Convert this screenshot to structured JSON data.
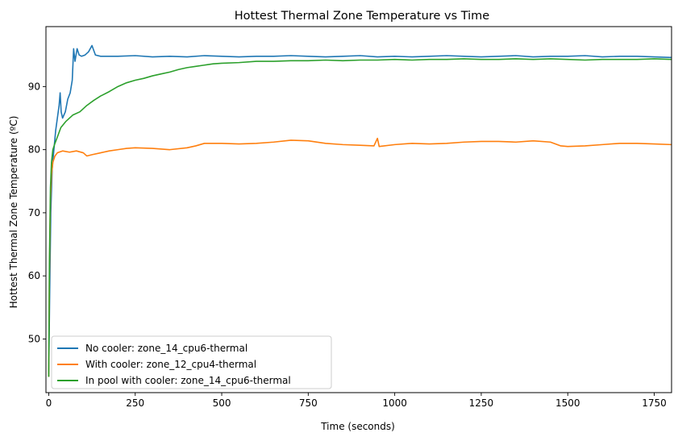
{
  "chart_data": {
    "type": "line",
    "title": "Hottest Thermal Zone Temperature vs Time",
    "xlabel": "Time (seconds)",
    "ylabel": "Hottest Thermal Zone Temperature (ºC)",
    "xlim": [
      -8,
      1800
    ],
    "ylim": [
      41.5,
      99.5
    ],
    "xticks": [
      0,
      250,
      500,
      750,
      1000,
      1250,
      1500,
      1750
    ],
    "yticks": [
      50,
      60,
      70,
      80,
      90
    ],
    "legend_position": "lower-left",
    "grid": false,
    "series": [
      {
        "name": "No cooler: zone_14_cpu6-thermal",
        "color": "#1f77b4",
        "points": [
          [
            0,
            44
          ],
          [
            3,
            58
          ],
          [
            6,
            70
          ],
          [
            10,
            77
          ],
          [
            15,
            80
          ],
          [
            20,
            83
          ],
          [
            25,
            85
          ],
          [
            30,
            87
          ],
          [
            33,
            89
          ],
          [
            36,
            86
          ],
          [
            40,
            85
          ],
          [
            48,
            86
          ],
          [
            55,
            88
          ],
          [
            62,
            89
          ],
          [
            68,
            91
          ],
          [
            72,
            96
          ],
          [
            76,
            94
          ],
          [
            82,
            96
          ],
          [
            88,
            95
          ],
          [
            95,
            94.8
          ],
          [
            105,
            95
          ],
          [
            115,
            95.5
          ],
          [
            125,
            96.5
          ],
          [
            135,
            95
          ],
          [
            150,
            94.8
          ],
          [
            200,
            94.8
          ],
          [
            250,
            94.9
          ],
          [
            300,
            94.7
          ],
          [
            350,
            94.8
          ],
          [
            400,
            94.7
          ],
          [
            450,
            94.9
          ],
          [
            500,
            94.8
          ],
          [
            550,
            94.7
          ],
          [
            600,
            94.8
          ],
          [
            650,
            94.8
          ],
          [
            700,
            94.9
          ],
          [
            750,
            94.8
          ],
          [
            800,
            94.7
          ],
          [
            850,
            94.8
          ],
          [
            900,
            94.9
          ],
          [
            950,
            94.7
          ],
          [
            1000,
            94.8
          ],
          [
            1050,
            94.7
          ],
          [
            1100,
            94.8
          ],
          [
            1150,
            94.9
          ],
          [
            1200,
            94.8
          ],
          [
            1250,
            94.7
          ],
          [
            1300,
            94.8
          ],
          [
            1350,
            94.9
          ],
          [
            1400,
            94.7
          ],
          [
            1450,
            94.8
          ],
          [
            1500,
            94.8
          ],
          [
            1550,
            94.9
          ],
          [
            1600,
            94.7
          ],
          [
            1650,
            94.8
          ],
          [
            1700,
            94.8
          ],
          [
            1750,
            94.7
          ],
          [
            1800,
            94.6
          ]
        ]
      },
      {
        "name": "With cooler: zone_12_cpu4-thermal",
        "color": "#ff7f0e",
        "points": [
          [
            0,
            44
          ],
          [
            2,
            60
          ],
          [
            5,
            72
          ],
          [
            8,
            76
          ],
          [
            12,
            78
          ],
          [
            18,
            79
          ],
          [
            25,
            79.5
          ],
          [
            40,
            79.8
          ],
          [
            60,
            79.6
          ],
          [
            80,
            79.8
          ],
          [
            100,
            79.5
          ],
          [
            110,
            79
          ],
          [
            125,
            79.2
          ],
          [
            150,
            79.5
          ],
          [
            175,
            79.8
          ],
          [
            200,
            80
          ],
          [
            225,
            80.2
          ],
          [
            250,
            80.3
          ],
          [
            300,
            80.2
          ],
          [
            350,
            80
          ],
          [
            400,
            80.3
          ],
          [
            425,
            80.6
          ],
          [
            450,
            81
          ],
          [
            500,
            81
          ],
          [
            550,
            80.9
          ],
          [
            600,
            81
          ],
          [
            650,
            81.2
          ],
          [
            700,
            81.5
          ],
          [
            750,
            81.4
          ],
          [
            800,
            81
          ],
          [
            850,
            80.8
          ],
          [
            900,
            80.7
          ],
          [
            940,
            80.6
          ],
          [
            950,
            81.8
          ],
          [
            955,
            80.5
          ],
          [
            1000,
            80.8
          ],
          [
            1050,
            81
          ],
          [
            1100,
            80.9
          ],
          [
            1150,
            81
          ],
          [
            1200,
            81.2
          ],
          [
            1250,
            81.3
          ],
          [
            1300,
            81.3
          ],
          [
            1350,
            81.2
          ],
          [
            1400,
            81.4
          ],
          [
            1450,
            81.2
          ],
          [
            1480,
            80.6
          ],
          [
            1500,
            80.5
          ],
          [
            1550,
            80.6
          ],
          [
            1600,
            80.8
          ],
          [
            1650,
            81
          ],
          [
            1700,
            81
          ],
          [
            1750,
            80.9
          ],
          [
            1800,
            80.8
          ]
        ]
      },
      {
        "name": "In pool with cooler: zone_14_cpu6-thermal",
        "color": "#2ca02c",
        "points": [
          [
            0,
            44
          ],
          [
            2,
            62
          ],
          [
            5,
            74
          ],
          [
            8,
            78
          ],
          [
            12,
            80
          ],
          [
            18,
            81
          ],
          [
            25,
            82
          ],
          [
            35,
            83.5
          ],
          [
            50,
            84.5
          ],
          [
            70,
            85.5
          ],
          [
            90,
            86
          ],
          [
            110,
            87
          ],
          [
            130,
            87.8
          ],
          [
            150,
            88.5
          ],
          [
            175,
            89.2
          ],
          [
            200,
            90
          ],
          [
            225,
            90.6
          ],
          [
            250,
            91
          ],
          [
            275,
            91.3
          ],
          [
            300,
            91.7
          ],
          [
            325,
            92
          ],
          [
            350,
            92.3
          ],
          [
            375,
            92.7
          ],
          [
            400,
            93
          ],
          [
            425,
            93.2
          ],
          [
            450,
            93.4
          ],
          [
            475,
            93.6
          ],
          [
            500,
            93.7
          ],
          [
            550,
            93.8
          ],
          [
            600,
            94
          ],
          [
            650,
            94
          ],
          [
            700,
            94.1
          ],
          [
            750,
            94.1
          ],
          [
            800,
            94.2
          ],
          [
            850,
            94.1
          ],
          [
            900,
            94.2
          ],
          [
            950,
            94.2
          ],
          [
            1000,
            94.3
          ],
          [
            1050,
            94.2
          ],
          [
            1100,
            94.3
          ],
          [
            1150,
            94.3
          ],
          [
            1200,
            94.4
          ],
          [
            1250,
            94.3
          ],
          [
            1300,
            94.3
          ],
          [
            1350,
            94.4
          ],
          [
            1400,
            94.3
          ],
          [
            1450,
            94.4
          ],
          [
            1500,
            94.3
          ],
          [
            1550,
            94.2
          ],
          [
            1600,
            94.3
          ],
          [
            1650,
            94.3
          ],
          [
            1700,
            94.3
          ],
          [
            1750,
            94.4
          ],
          [
            1800,
            94.3
          ]
        ]
      }
    ]
  }
}
